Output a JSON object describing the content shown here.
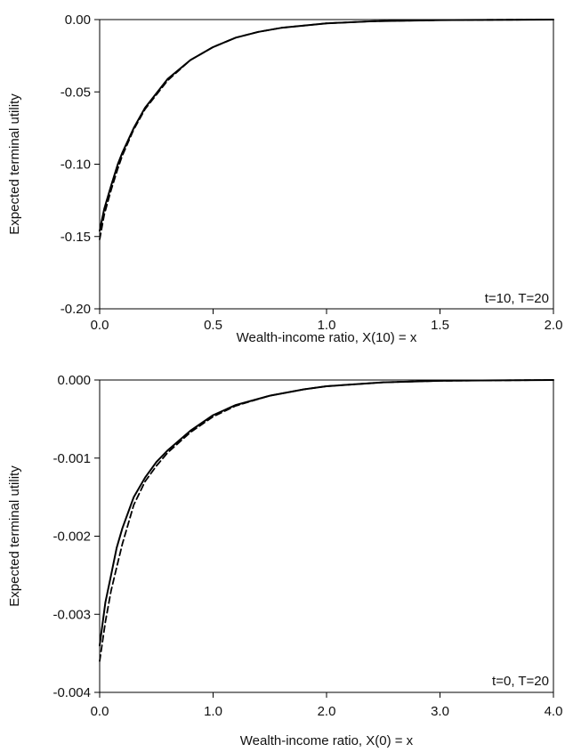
{
  "chart_data": [
    {
      "type": "line",
      "annotation": "t=10, T=20",
      "xlabel": "Wealth-income ratio, X(10) = x",
      "ylabel": "Expected terminal utility",
      "xlim": [
        0,
        2
      ],
      "ylim": [
        -0.2,
        0
      ],
      "x_ticks": [
        "0.0",
        "0.5",
        "1.0",
        "1.5",
        "2.0"
      ],
      "y_ticks": [
        "0.00",
        "-0.05",
        "-0.10",
        "-0.15",
        "-0.20"
      ],
      "grid": false,
      "series": [
        {
          "style": "solid",
          "x": [
            0,
            0.02,
            0.05,
            0.08,
            0.1,
            0.15,
            0.2,
            0.3,
            0.4,
            0.5,
            0.6,
            0.7,
            0.8,
            1.0,
            1.2,
            1.5,
            1.8,
            2.0
          ],
          "y": [
            -0.146,
            -0.131,
            -0.115,
            -0.1,
            -0.092,
            -0.075,
            -0.061,
            -0.041,
            -0.028,
            -0.019,
            -0.0125,
            -0.0085,
            -0.0057,
            -0.0026,
            -0.0012,
            -0.0004,
            -0.0001,
            0
          ]
        },
        {
          "style": "dashed",
          "x": [
            0,
            0.02,
            0.05,
            0.08,
            0.1,
            0.15,
            0.2,
            0.3,
            0.4,
            0.5,
            0.6,
            0.7,
            0.8,
            1.0,
            1.2,
            1.5,
            1.8,
            2.0
          ],
          "y": [
            -0.152,
            -0.135,
            -0.118,
            -0.103,
            -0.094,
            -0.076,
            -0.062,
            -0.042,
            -0.028,
            -0.019,
            -0.0125,
            -0.0085,
            -0.0057,
            -0.0026,
            -0.0012,
            -0.0004,
            -0.0001,
            0
          ]
        }
      ]
    },
    {
      "type": "line",
      "annotation": "t=0, T=20",
      "xlabel": "Wealth-income ratio, X(0) = x",
      "ylabel": "Expected terminal utility",
      "xlim": [
        0,
        4
      ],
      "ylim": [
        -0.004,
        0
      ],
      "x_ticks": [
        "0.0",
        "1.0",
        "2.0",
        "3.0",
        "4.0"
      ],
      "y_ticks": [
        "0.000",
        "-0.001",
        "-0.002",
        "-0.003",
        "-0.004"
      ],
      "grid": false,
      "series": [
        {
          "style": "solid",
          "x": [
            0,
            0.05,
            0.1,
            0.15,
            0.2,
            0.3,
            0.4,
            0.5,
            0.6,
            0.8,
            1.0,
            1.2,
            1.5,
            1.8,
            2.0,
            2.5,
            3.0,
            3.5,
            4.0
          ],
          "y": [
            -0.0034,
            -0.00285,
            -0.0025,
            -0.00215,
            -0.0019,
            -0.0015,
            -0.00125,
            -0.00105,
            -0.0009,
            -0.00065,
            -0.00045,
            -0.00032,
            -0.0002,
            -0.00012,
            -8e-05,
            -3e-05,
            -1e-05,
            -5e-06,
            0
          ]
        },
        {
          "style": "dashed",
          "x": [
            0,
            0.05,
            0.1,
            0.15,
            0.2,
            0.3,
            0.4,
            0.5,
            0.6,
            0.8,
            1.0,
            1.2,
            1.5,
            1.8,
            2.0,
            2.5,
            3.0,
            3.5,
            4.0
          ],
          "y": [
            -0.0036,
            -0.0031,
            -0.0027,
            -0.0024,
            -0.0021,
            -0.0016,
            -0.0013,
            -0.0011,
            -0.00093,
            -0.00067,
            -0.00047,
            -0.00033,
            -0.0002,
            -0.00012,
            -8e-05,
            -3e-05,
            -1e-05,
            -5e-06,
            0
          ]
        }
      ]
    }
  ]
}
